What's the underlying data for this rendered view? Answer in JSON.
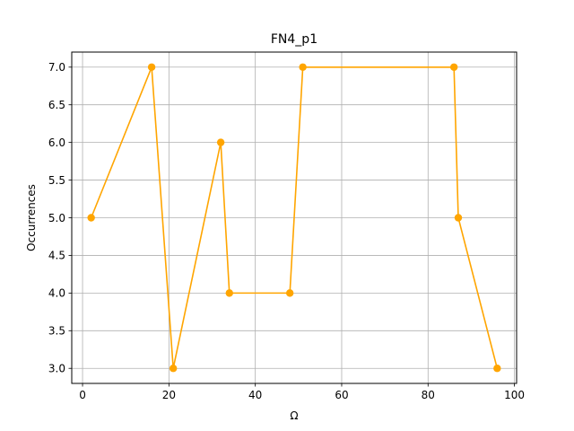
{
  "chart_data": {
    "type": "line",
    "title": "FN4_p1",
    "xlabel": "Ω",
    "ylabel": "Occurrences",
    "xlim": [
      -2.5,
      100.5
    ],
    "ylim": [
      2.8,
      7.2
    ],
    "x_ticks": [
      0,
      20,
      40,
      60,
      80,
      100
    ],
    "y_ticks": [
      3.0,
      3.5,
      4.0,
      4.5,
      5.0,
      5.5,
      6.0,
      6.5,
      7.0
    ],
    "grid": true,
    "series": [
      {
        "color": "#ffa500",
        "marker": "circle",
        "x": [
          2,
          16,
          21,
          32,
          34,
          48,
          51,
          86,
          87,
          96
        ],
        "y": [
          5,
          7,
          3,
          6,
          4,
          4,
          7,
          7,
          5,
          3
        ]
      }
    ]
  }
}
